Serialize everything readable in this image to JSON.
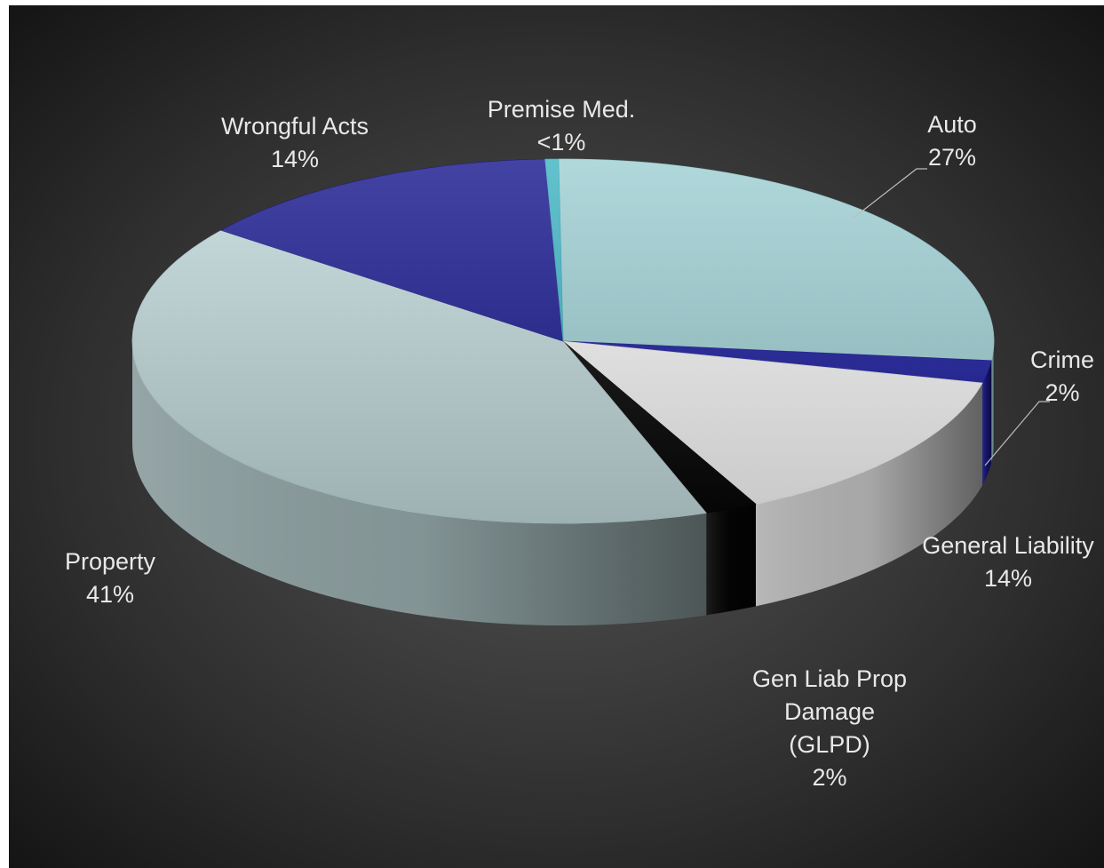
{
  "chart_data": {
    "type": "pie",
    "style": "3d-exploded-none",
    "title": "",
    "legend": "none",
    "colors": {
      "background_center": "#505050",
      "background_edge": "#121212",
      "label_text": "#e8e8e8"
    },
    "slices": [
      {
        "name": "Auto",
        "value": 27,
        "label_lines": [
          "Auto",
          "27%"
        ],
        "color": "#9fd0d4"
      },
      {
        "name": "Crime",
        "value": 2,
        "label_lines": [
          "Crime",
          "2%"
        ],
        "color": "#1b1b9c"
      },
      {
        "name": "General Liability",
        "value": 14,
        "label_lines": [
          "General Liability",
          "14%"
        ],
        "color": "#f4f4f4"
      },
      {
        "name": "Gen Liab Prop Damage (GLPD)",
        "value": 2,
        "label_lines": [
          "Gen Liab Prop",
          "Damage",
          "(GLPD)",
          "2%"
        ],
        "color": "#050505"
      },
      {
        "name": "Property",
        "value": 41,
        "label_lines": [
          "Property",
          "41%"
        ],
        "color": "#c0d8da"
      },
      {
        "name": "Wrongful Acts",
        "value": 14,
        "label_lines": [
          "Wrongful Acts",
          "14%"
        ],
        "color": "#1a1a8f"
      },
      {
        "name": "Premise Med.",
        "value": 0.5,
        "label_lines": [
          "Premise Med.",
          "<1%"
        ],
        "color": "#3fb5c4"
      }
    ]
  }
}
